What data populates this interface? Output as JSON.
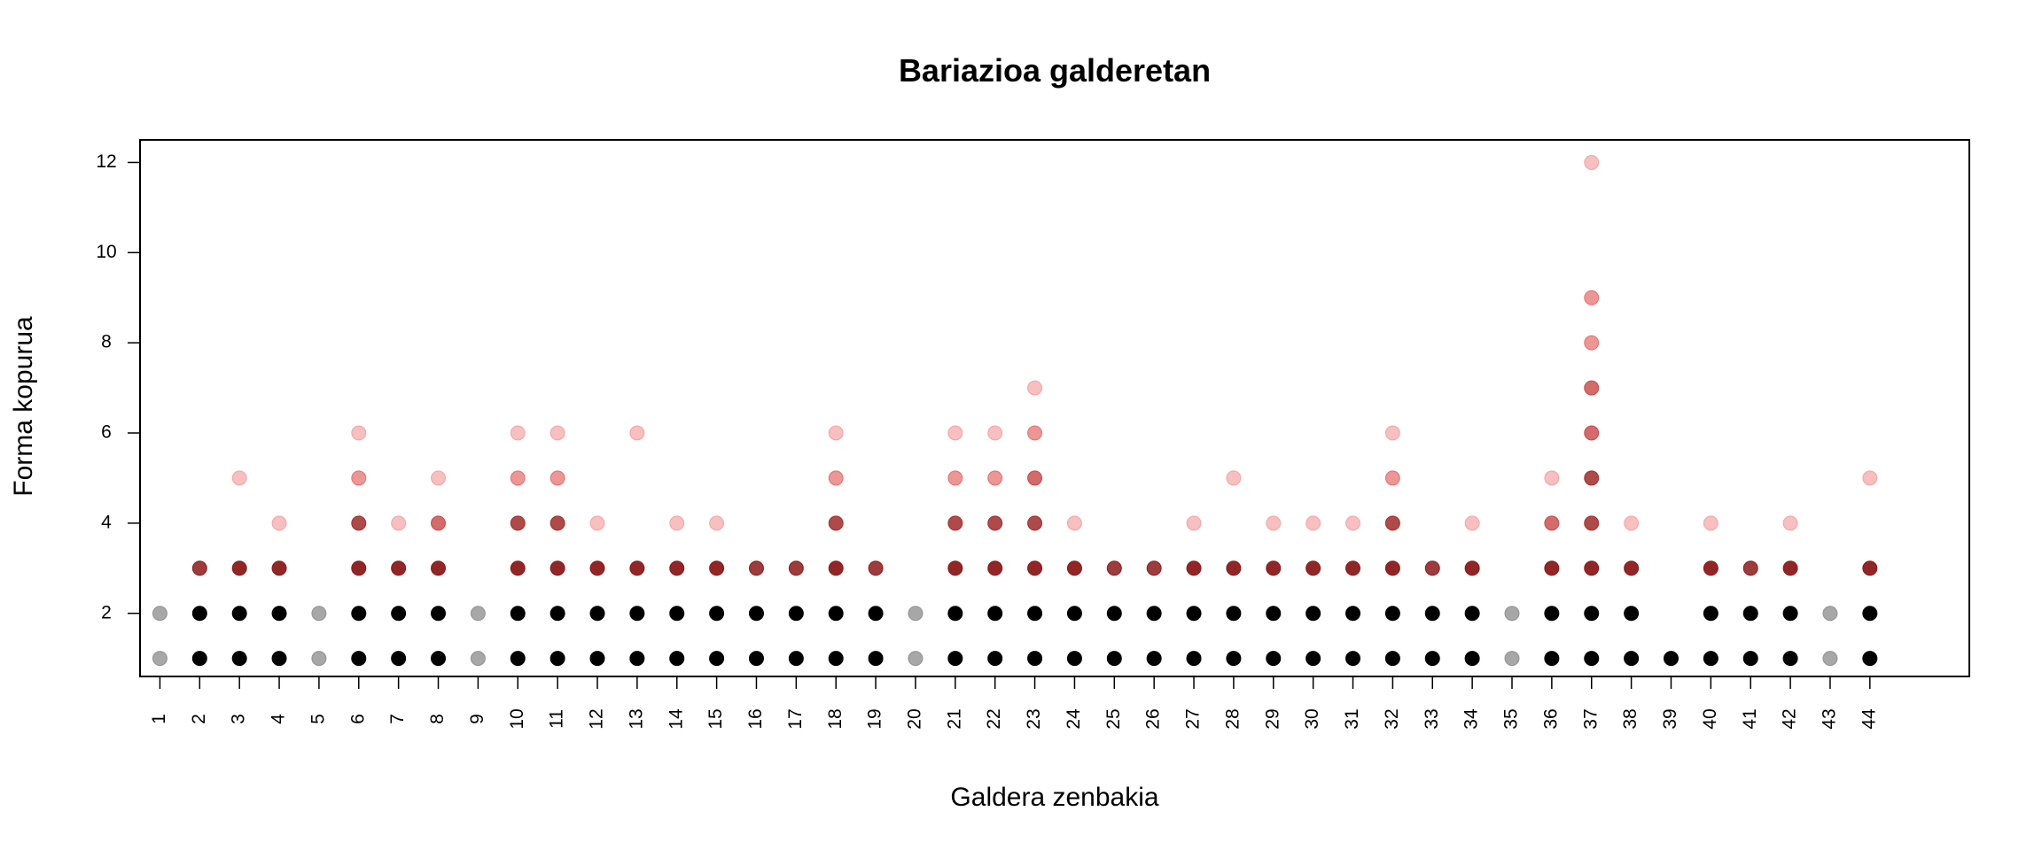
{
  "chart_data": {
    "type": "scatter",
    "title": "Bariazioa galderetan",
    "xlabel": "Galdera zenbakia",
    "ylabel": "Forma kopurua",
    "xlim": [
      0.5,
      46.5
    ],
    "ylim": [
      0.6,
      12.5
    ],
    "x_ticks": [
      1,
      2,
      3,
      4,
      5,
      6,
      7,
      8,
      9,
      10,
      11,
      12,
      13,
      14,
      15,
      16,
      17,
      18,
      19,
      20,
      21,
      22,
      23,
      24,
      25,
      26,
      27,
      28,
      29,
      30,
      31,
      32,
      33,
      34,
      35,
      36,
      37,
      38,
      39,
      40,
      41,
      42,
      43,
      44
    ],
    "y_ticks": [
      2,
      4,
      6,
      8,
      10,
      12
    ],
    "grid": false,
    "legend": "none",
    "colors": {
      "base": "#000000",
      "accent": "#d42020"
    },
    "points": [
      {
        "x": 1,
        "y": [
          1,
          2
        ]
      },
      {
        "x": 2,
        "y": [
          1,
          2,
          3
        ]
      },
      {
        "x": 3,
        "y": [
          1,
          2,
          3,
          5
        ]
      },
      {
        "x": 4,
        "y": [
          1,
          2,
          3,
          4
        ]
      },
      {
        "x": 5,
        "y": [
          1,
          2
        ]
      },
      {
        "x": 6,
        "y": [
          1,
          2,
          3,
          4,
          5,
          6
        ]
      },
      {
        "x": 7,
        "y": [
          1,
          2,
          3,
          4
        ]
      },
      {
        "x": 8,
        "y": [
          1,
          2,
          3,
          4,
          5
        ]
      },
      {
        "x": 9,
        "y": [
          1,
          2
        ]
      },
      {
        "x": 10,
        "y": [
          1,
          2,
          3,
          4,
          5,
          6
        ]
      },
      {
        "x": 11,
        "y": [
          1,
          2,
          3,
          4,
          5,
          6
        ]
      },
      {
        "x": 12,
        "y": [
          1,
          2,
          3,
          4
        ]
      },
      {
        "x": 13,
        "y": [
          1,
          2,
          3,
          6
        ]
      },
      {
        "x": 14,
        "y": [
          1,
          2,
          3,
          4
        ]
      },
      {
        "x": 15,
        "y": [
          1,
          2,
          3,
          4
        ]
      },
      {
        "x": 16,
        "y": [
          1,
          2,
          3
        ]
      },
      {
        "x": 17,
        "y": [
          1,
          2,
          3
        ]
      },
      {
        "x": 18,
        "y": [
          1,
          2,
          3,
          4,
          5,
          6
        ]
      },
      {
        "x": 19,
        "y": [
          1,
          2,
          3
        ]
      },
      {
        "x": 20,
        "y": [
          1,
          2
        ]
      },
      {
        "x": 21,
        "y": [
          1,
          2,
          3,
          4,
          5,
          6
        ]
      },
      {
        "x": 22,
        "y": [
          1,
          2,
          3,
          4,
          5,
          6
        ]
      },
      {
        "x": 23,
        "y": [
          1,
          2,
          3,
          4,
          5,
          6,
          7
        ]
      },
      {
        "x": 24,
        "y": [
          1,
          2,
          3,
          4
        ]
      },
      {
        "x": 25,
        "y": [
          1,
          2,
          3
        ]
      },
      {
        "x": 26,
        "y": [
          1,
          2,
          3
        ]
      },
      {
        "x": 27,
        "y": [
          1,
          2,
          3,
          4
        ]
      },
      {
        "x": 28,
        "y": [
          1,
          2,
          3,
          5
        ]
      },
      {
        "x": 29,
        "y": [
          1,
          2,
          3,
          4
        ]
      },
      {
        "x": 30,
        "y": [
          1,
          2,
          3,
          4
        ]
      },
      {
        "x": 31,
        "y": [
          1,
          2,
          3,
          4
        ]
      },
      {
        "x": 32,
        "y": [
          1,
          2,
          3,
          4,
          5,
          6
        ]
      },
      {
        "x": 33,
        "y": [
          1,
          2,
          3
        ]
      },
      {
        "x": 34,
        "y": [
          1,
          2,
          3,
          4
        ]
      },
      {
        "x": 35,
        "y": [
          1,
          2
        ]
      },
      {
        "x": 36,
        "y": [
          1,
          2,
          3,
          4,
          5
        ]
      },
      {
        "x": 37,
        "y": [
          1,
          2,
          3,
          4,
          5,
          6,
          7,
          8,
          9,
          12
        ]
      },
      {
        "x": 38,
        "y": [
          1,
          2,
          3,
          4
        ]
      },
      {
        "x": 39,
        "y": [
          1
        ]
      },
      {
        "x": 40,
        "y": [
          1,
          2,
          3,
          4
        ]
      },
      {
        "x": 41,
        "y": [
          1,
          2,
          3
        ]
      },
      {
        "x": 42,
        "y": [
          1,
          2,
          3,
          4
        ]
      },
      {
        "x": 43,
        "y": [
          1,
          2
        ]
      },
      {
        "x": 44,
        "y": [
          1,
          2,
          3,
          5
        ]
      }
    ]
  }
}
